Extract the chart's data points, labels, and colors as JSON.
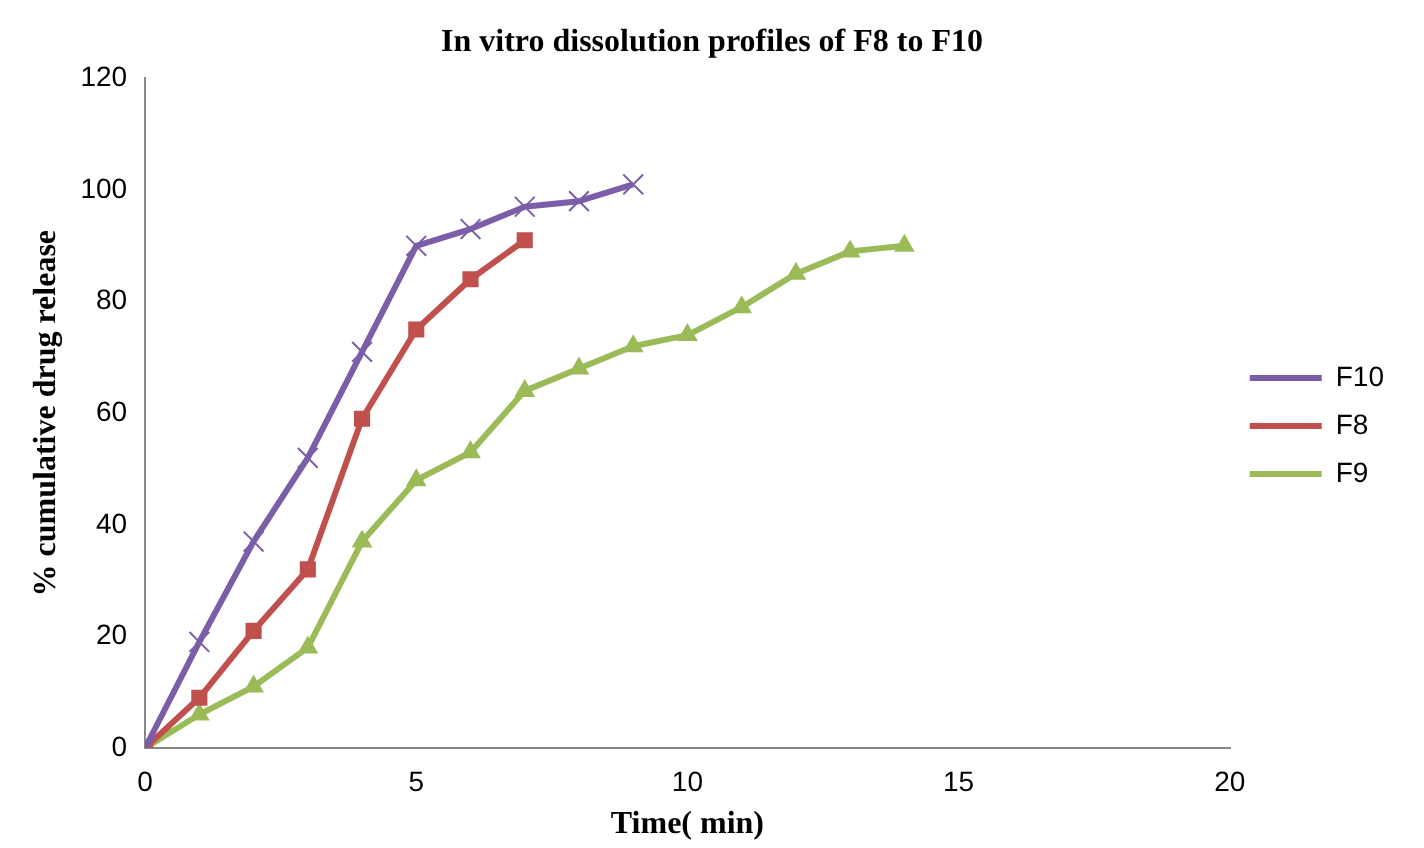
{
  "chart_data": {
    "type": "line",
    "title": "In vitro dissolution profiles of F8 to F10",
    "xlabel": "Time( min)",
    "ylabel": "% cumulative drug release",
    "xlim": [
      0,
      20
    ],
    "xticks": [
      0,
      5,
      10,
      15,
      20
    ],
    "ylim": [
      0,
      120
    ],
    "yticks": [
      0,
      20,
      40,
      60,
      80,
      100,
      120
    ],
    "grid": false,
    "legend": "right",
    "series": [
      {
        "name": "F10",
        "color": "#7b5ea7",
        "marker": "cross",
        "x": [
          0,
          1,
          2,
          3,
          4,
          5,
          6,
          7,
          8,
          9
        ],
        "values": [
          0,
          19,
          37,
          52,
          71,
          90,
          93,
          97,
          98,
          101
        ]
      },
      {
        "name": "F8",
        "color": "#c0504d",
        "marker": "square",
        "x": [
          0,
          1,
          2,
          3,
          4,
          5,
          6,
          7
        ],
        "values": [
          0,
          9,
          21,
          32,
          59,
          75,
          84,
          91
        ]
      },
      {
        "name": "F9",
        "color": "#9bbb59",
        "marker": "triangle",
        "x": [
          0,
          1,
          2,
          3,
          4,
          5,
          6,
          7,
          8,
          9,
          10,
          11,
          12,
          13,
          14
        ],
        "values": [
          0,
          6,
          11,
          18,
          37,
          48,
          53,
          64,
          68,
          72,
          74,
          79,
          85,
          89,
          90
        ]
      }
    ]
  }
}
